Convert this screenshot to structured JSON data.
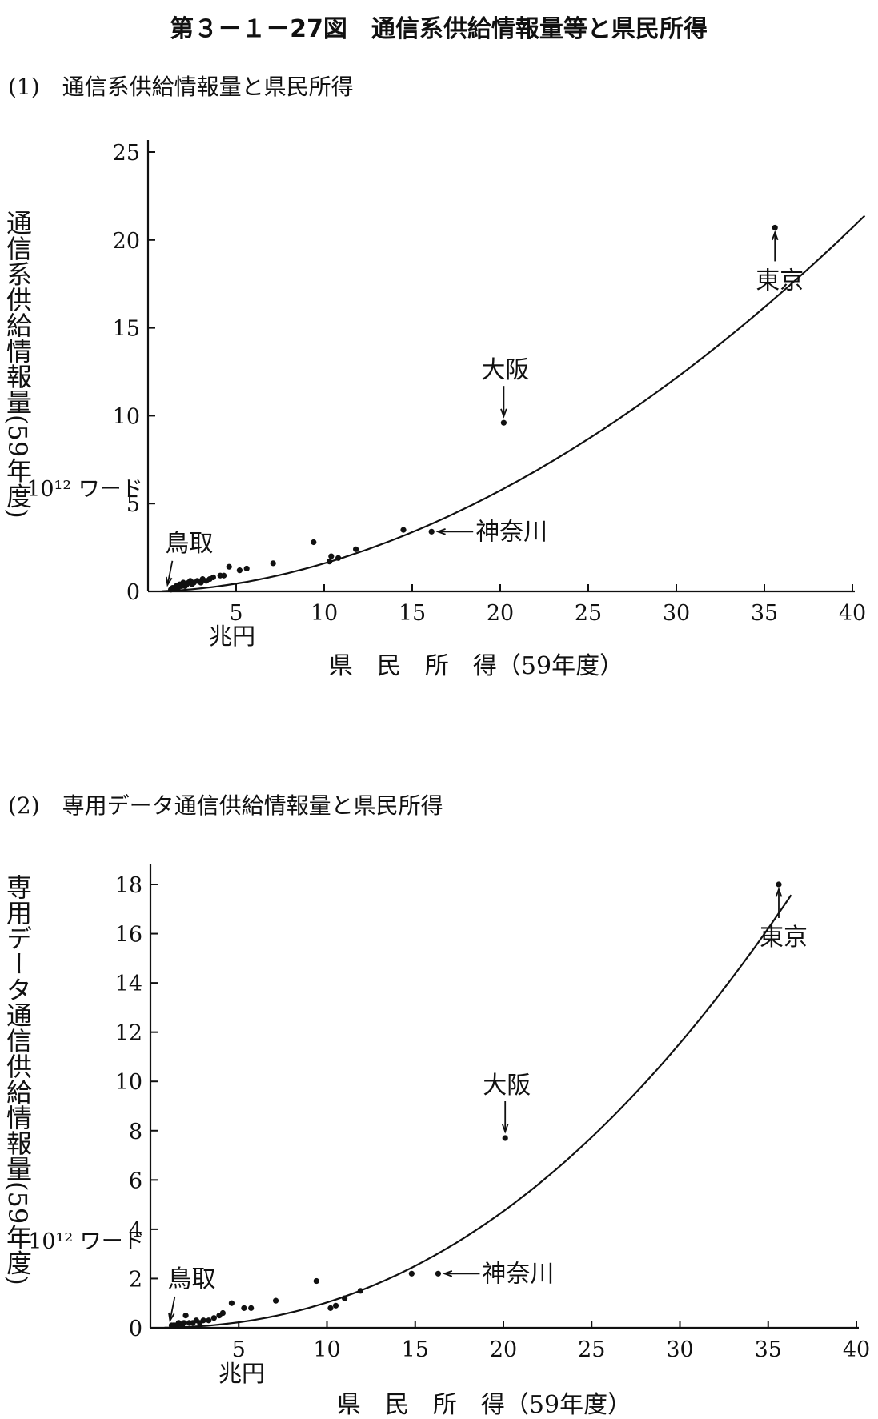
{
  "figure_title": "第３－１－27図　通信系供給情報量等と県民所得",
  "chart_data": [
    {
      "type": "scatter",
      "panel_title": "(1)　通信系供給情報量と県民所得",
      "ylabel": "通信系供給情報量(59年度)",
      "yunit": "10¹² ワード",
      "xlabel": "県　民　所　得（59年度）",
      "xunit": "兆円",
      "xlim": [
        0,
        40
      ],
      "ylim": [
        0,
        25
      ],
      "x_ticks": [
        5,
        10,
        15,
        20,
        25,
        30,
        35,
        40
      ],
      "y_ticks": [
        0,
        5,
        10,
        15,
        20,
        25
      ],
      "grid": false,
      "series": [
        {
          "points": [
            [
              35.6,
              20.7
            ],
            [
              20.2,
              9.6
            ],
            [
              16.1,
              3.4
            ],
            [
              14.5,
              3.5
            ],
            [
              11.8,
              2.4
            ],
            [
              10.8,
              1.9
            ],
            [
              10.3,
              1.7
            ],
            [
              10.4,
              2.0
            ],
            [
              9.4,
              2.8
            ],
            [
              7.1,
              1.6
            ],
            [
              5.6,
              1.3
            ],
            [
              5.2,
              1.2
            ],
            [
              4.6,
              1.4
            ],
            [
              4.3,
              0.9
            ],
            [
              4.1,
              0.9
            ],
            [
              3.7,
              0.8
            ],
            [
              3.5,
              0.7
            ],
            [
              3.3,
              0.6
            ],
            [
              3.1,
              0.7
            ],
            [
              3.0,
              0.5
            ],
            [
              2.8,
              0.6
            ],
            [
              2.6,
              0.5
            ],
            [
              2.5,
              0.4
            ],
            [
              2.4,
              0.6
            ],
            [
              2.3,
              0.5
            ],
            [
              2.2,
              0.4
            ],
            [
              2.1,
              0.3
            ],
            [
              2.0,
              0.5
            ],
            [
              1.9,
              0.3
            ],
            [
              1.8,
              0.4
            ],
            [
              1.7,
              0.2
            ],
            [
              1.6,
              0.3
            ],
            [
              1.5,
              0.2
            ],
            [
              1.4,
              0.2
            ],
            [
              1.3,
              0.1
            ]
          ]
        }
      ],
      "fit_curve": {
        "formula": "y = 0.0225 * x^1.85",
        "x_start": 0.8,
        "x_end": 40.7
      },
      "annotations": [
        {
          "text": "東京",
          "x": 35.6,
          "y": 20.7,
          "arrow": "up"
        },
        {
          "text": "大阪",
          "x": 20.2,
          "y": 9.6,
          "arrow": "down"
        },
        {
          "text": "神奈川",
          "x": 16.1,
          "y": 3.4,
          "arrow": "left"
        },
        {
          "text": "鳥取",
          "x": 1.2,
          "y": 0.1,
          "arrow": "down"
        }
      ]
    },
    {
      "type": "scatter",
      "panel_title": "(2)　専用データ通信供給情報量と県民所得",
      "ylabel": "専用データ通信供給情報量(59年度)",
      "yunit": "10¹² ワード",
      "xlabel": "県　民　所　得（59年度）",
      "xunit": "兆円",
      "xlim": [
        0,
        40
      ],
      "ylim": [
        0,
        18
      ],
      "x_ticks": [
        5,
        10,
        15,
        20,
        25,
        30,
        35,
        40
      ],
      "y_ticks": [
        0,
        2,
        4,
        6,
        8,
        10,
        12,
        14,
        16,
        18
      ],
      "grid": false,
      "series": [
        {
          "points": [
            [
              35.6,
              18.0
            ],
            [
              20.1,
              7.7
            ],
            [
              16.3,
              2.2
            ],
            [
              14.8,
              2.2
            ],
            [
              11.9,
              1.5
            ],
            [
              11.0,
              1.2
            ],
            [
              10.5,
              0.9
            ],
            [
              10.2,
              0.8
            ],
            [
              9.4,
              1.9
            ],
            [
              7.1,
              1.1
            ],
            [
              5.7,
              0.8
            ],
            [
              5.3,
              0.8
            ],
            [
              4.6,
              1.0
            ],
            [
              4.1,
              0.6
            ],
            [
              3.9,
              0.5
            ],
            [
              3.6,
              0.4
            ],
            [
              3.3,
              0.3
            ],
            [
              3.0,
              0.3
            ],
            [
              2.8,
              0.2
            ],
            [
              2.6,
              0.3
            ],
            [
              2.4,
              0.2
            ],
            [
              2.2,
              0.2
            ],
            [
              2.0,
              0.5
            ],
            [
              1.9,
              0.2
            ],
            [
              1.8,
              0.1
            ],
            [
              1.6,
              0.2
            ],
            [
              1.5,
              0.1
            ],
            [
              1.4,
              0.1
            ],
            [
              1.3,
              0.1
            ],
            [
              1.2,
              0.1
            ]
          ]
        }
      ],
      "fit_curve": {
        "formula": "y = 0.0065 * x^2.2",
        "x_start": 0.8,
        "x_end": 36.3
      },
      "annotations": [
        {
          "text": "東京",
          "x": 35.6,
          "y": 18.0,
          "arrow": "up"
        },
        {
          "text": "大阪",
          "x": 20.1,
          "y": 7.7,
          "arrow": "down"
        },
        {
          "text": "神奈川",
          "x": 16.3,
          "y": 2.2,
          "arrow": "left"
        },
        {
          "text": "鳥取",
          "x": 1.2,
          "y": 0.1,
          "arrow": "down"
        }
      ]
    }
  ]
}
